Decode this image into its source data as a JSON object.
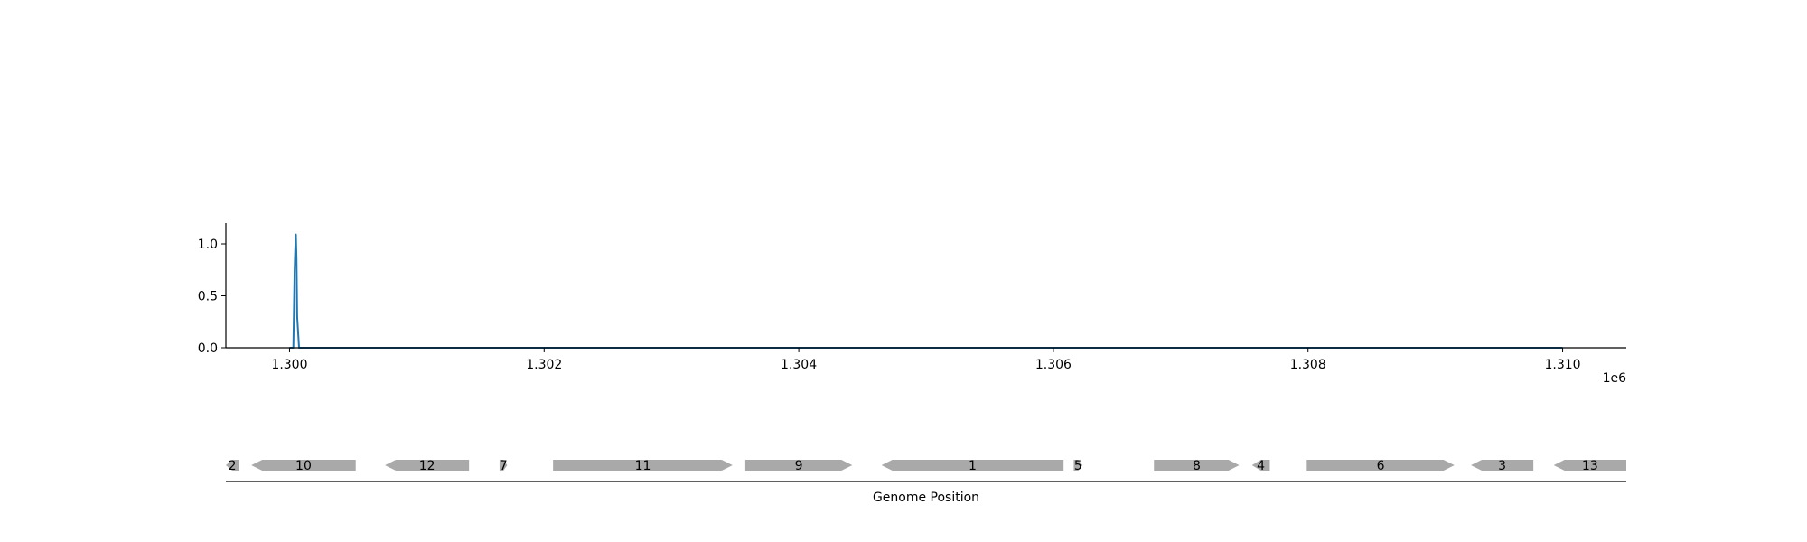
{
  "chart_data": [
    {
      "type": "line",
      "title": "",
      "xlabel": "",
      "ylabel": "",
      "xlim": [
        1299500,
        1310500
      ],
      "ylim": [
        0,
        1.2
      ],
      "x_offset_label": "1e6",
      "x_ticks": [
        1300000,
        1302000,
        1304000,
        1306000,
        1308000,
        1310000
      ],
      "x_tick_labels": [
        "1.300",
        "1.302",
        "1.304",
        "1.306",
        "1.308",
        "1.310"
      ],
      "y_ticks": [
        0.0,
        0.5,
        1.0
      ],
      "y_tick_labels": [
        "0.0",
        "0.5",
        "1.0"
      ],
      "grid": false,
      "series": [
        {
          "color": "#1f77b4",
          "x": [
            1300000,
            1300030,
            1300040,
            1300045,
            1300050,
            1300055,
            1300060,
            1300075,
            1300100,
            1310000
          ],
          "y": [
            0.0,
            0.0,
            0.75,
            0.95,
            1.09,
            0.85,
            0.3,
            0.0,
            0.0,
            0.0
          ]
        }
      ]
    },
    {
      "type": "gene_track",
      "xlabel": "Genome Position",
      "xlim": [
        1299500,
        1310500
      ],
      "feature_color": "#a9a9a9",
      "features": [
        {
          "label": "2",
          "start": 1299500,
          "end": 1299600,
          "strand": -1
        },
        {
          "label": "10",
          "start": 1299700,
          "end": 1300520,
          "strand": -1
        },
        {
          "label": "12",
          "start": 1300750,
          "end": 1301410,
          "strand": -1
        },
        {
          "label": "7",
          "start": 1301650,
          "end": 1301710,
          "strand": 1
        },
        {
          "label": "11",
          "start": 1302070,
          "end": 1303480,
          "strand": 1
        },
        {
          "label": "9",
          "start": 1303580,
          "end": 1304420,
          "strand": 1
        },
        {
          "label": "1",
          "start": 1304650,
          "end": 1306080,
          "strand": -1
        },
        {
          "label": "5",
          "start": 1306160,
          "end": 1306230,
          "strand": 1
        },
        {
          "label": "8",
          "start": 1306790,
          "end": 1307460,
          "strand": 1
        },
        {
          "label": "4",
          "start": 1307560,
          "end": 1307700,
          "strand": -1
        },
        {
          "label": "6",
          "start": 1307990,
          "end": 1309150,
          "strand": 1
        },
        {
          "label": "3",
          "start": 1309280,
          "end": 1309770,
          "strand": -1
        },
        {
          "label": "13",
          "start": 1309930,
          "end": 1310500,
          "strand": -1
        }
      ]
    }
  ]
}
